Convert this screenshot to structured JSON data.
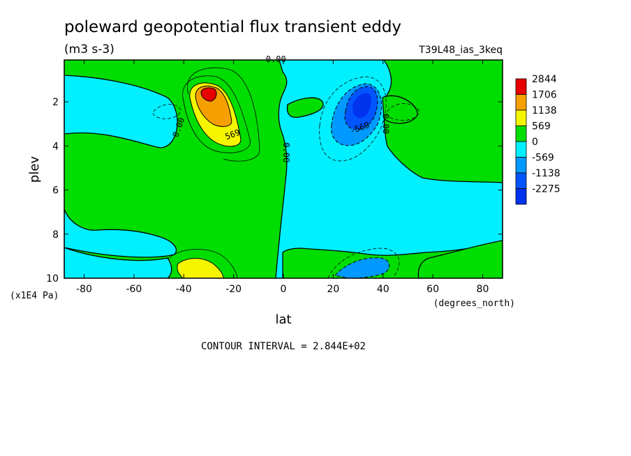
{
  "chart_data": {
    "type": "heatmap",
    "title": "poleward geopotential flux transient eddy",
    "subtitle": "(m3 s-3)",
    "run_label": "T39L48_ias_3keq",
    "xlabel": "lat",
    "x_units": "(degrees_north)",
    "ylabel": "plev",
    "y_units": "(x1E4 Pa)",
    "xlim": [
      -88,
      88
    ],
    "ylim": [
      10,
      0.1
    ],
    "x_ticks": [
      -80,
      -60,
      -40,
      -20,
      0,
      20,
      40,
      60,
      80
    ],
    "y_ticks": [
      2,
      4,
      6,
      8,
      10
    ],
    "legend": {
      "placement": "right",
      "levels": [
        "2844",
        "1706",
        "1138",
        "569",
        "0",
        "-569",
        "-1138",
        "-2275"
      ],
      "colors": [
        "#e60000",
        "#f5a000",
        "#f5f500",
        "#00dd00",
        "#00f0ff",
        "#0099ff",
        "#0055ff",
        "#0033ee"
      ]
    },
    "contour_labels": [
      {
        "text": "0.00",
        "lat": -3,
        "plev": 0.2
      },
      {
        "text": "0.00",
        "lat": -41,
        "plev": 3.2
      },
      {
        "text": "0.00",
        "lat": 0,
        "plev": 4.3
      },
      {
        "text": "0.00",
        "lat": 40,
        "plev": 3.0
      },
      {
        "text": "569",
        "lat": -20,
        "plev": 3.6
      },
      {
        "text": "-569",
        "lat": 31,
        "plev": 3.3
      }
    ],
    "footer": "CONTOUR INTERVAL = 2.844E+02"
  }
}
